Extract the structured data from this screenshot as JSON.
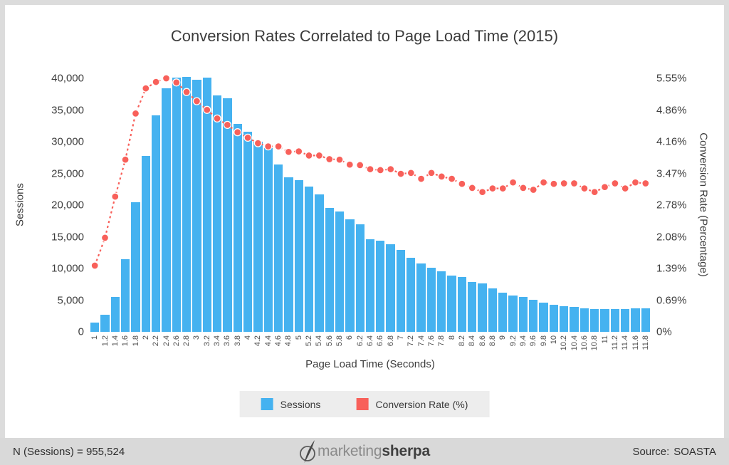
{
  "title": "Conversion Rates Correlated to Page Load Time (2015)",
  "chart_data": {
    "type": "combo-bar-line",
    "title": "Conversion Rates Correlated to Page Load Time (2015)",
    "xlabel": "Page Load Time (Seconds)",
    "grid": false,
    "legend_position": "bottom",
    "categories": [
      "1",
      "1.2",
      "1.4",
      "1.6",
      "1.8",
      "2",
      "2.2",
      "2.4",
      "2.6",
      "2.8",
      "3",
      "3.2",
      "3.4",
      "3.6",
      "3.8",
      "4",
      "4.2",
      "4.4",
      "4.6",
      "4.8",
      "5",
      "5.2",
      "5.4",
      "5.6",
      "5.8",
      "6",
      "6.2",
      "6.4",
      "6.6",
      "6.8",
      "7",
      "7.2",
      "7.4",
      "7.6",
      "7.8",
      "8",
      "8.2",
      "8.4",
      "8.6",
      "8.8",
      "9",
      "9.2",
      "9.4",
      "9.6",
      "9.8",
      "10",
      "10.2",
      "10.4",
      "10.6",
      "10.8",
      "11",
      "11.2",
      "11.4",
      "11.6",
      "11.8"
    ],
    "y_left": {
      "label": "Sessions",
      "ticks": [
        "0",
        "5,000",
        "10,000",
        "15,000",
        "20,000",
        "25,000",
        "30,000",
        "35,000",
        "40,000"
      ],
      "max": 40000
    },
    "y_right": {
      "label": "Conversion Rate (Percentage)",
      "ticks": [
        "0%",
        "0.69%",
        "1.39%",
        "2.08%",
        "2.78%",
        "3.47%",
        "4.16%",
        "4.86%",
        "5.55%"
      ],
      "max": 5.55
    },
    "series": [
      {
        "name": "Sessions",
        "type": "bar",
        "axis": "left",
        "color": "#45b2f0",
        "values": [
          1500,
          2700,
          5500,
          11500,
          20400,
          27800,
          34200,
          38400,
          40100,
          40200,
          39800,
          40100,
          37300,
          36800,
          32800,
          31600,
          30000,
          29000,
          26400,
          24400,
          23900,
          22900,
          21700,
          19600,
          19000,
          17700,
          17000,
          14600,
          14400,
          13800,
          12900,
          11700,
          10800,
          10100,
          9600,
          8900,
          8600,
          7900,
          7600,
          6800,
          6200,
          5700,
          5500,
          5100,
          4600,
          4300,
          4100,
          3900,
          3700,
          3600,
          3600,
          3600,
          3600,
          3700,
          3700
        ]
      },
      {
        "name": "Conversion Rate (%)",
        "type": "line",
        "axis": "right",
        "color": "#f8605a",
        "values": [
          1.45,
          2.06,
          2.96,
          3.77,
          4.78,
          5.33,
          5.47,
          5.55,
          5.46,
          5.25,
          5.05,
          4.86,
          4.67,
          4.53,
          4.37,
          4.25,
          4.13,
          4.06,
          4.06,
          3.94,
          3.95,
          3.86,
          3.86,
          3.78,
          3.77,
          3.66,
          3.65,
          3.56,
          3.54,
          3.56,
          3.46,
          3.48,
          3.35,
          3.48,
          3.4,
          3.35,
          3.24,
          3.15,
          3.06,
          3.14,
          3.14,
          3.27,
          3.15,
          3.11,
          3.27,
          3.24,
          3.25,
          3.25,
          3.14,
          3.06,
          3.17,
          3.25,
          3.14,
          3.27,
          3.25
        ]
      }
    ]
  },
  "legend": {
    "items": [
      {
        "label": "Sessions",
        "color": "#45b2f0"
      },
      {
        "label": "Conversion Rate (%)",
        "color": "#f8605a"
      }
    ]
  },
  "footer": {
    "n_label": "N (Sessions) = 955,524",
    "source_label": "Source:",
    "source_value": "SOASTA",
    "logo": {
      "light": "marketing",
      "bold": "sherpa",
      "icon": "marketingsherpa-leaf-icon"
    }
  },
  "colors": {
    "bar_blue": "#45b2f0",
    "line_red": "#f8605a",
    "legend_bg": "#ededed",
    "footer_bg": "#d9d9d9",
    "frame_border": "#dcdcdc",
    "text_dark": "#3d3d3d"
  }
}
